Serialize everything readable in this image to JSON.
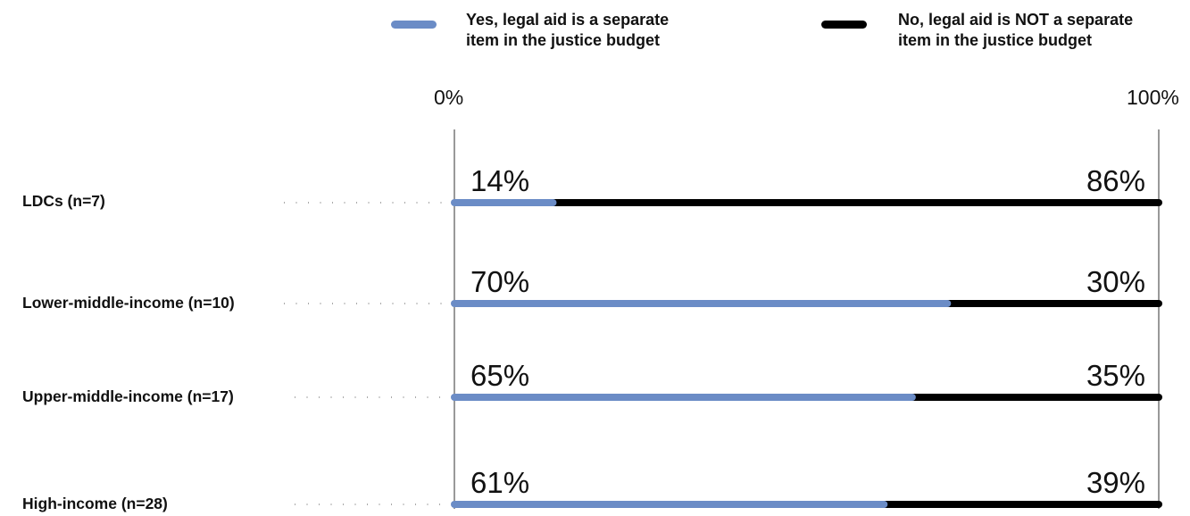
{
  "chart_data": {
    "type": "bar",
    "orientation": "horizontal",
    "stacked": true,
    "categories": [
      "LDCs (n=7)",
      "Lower-middle-income (n=10)",
      "Upper-middle-income (n=17)",
      "High-income (n=28)"
    ],
    "series": [
      {
        "name": "Yes, legal aid is a separate item in the justice budget",
        "color": "#6b8cc6",
        "values": [
          14,
          70,
          65,
          61
        ],
        "labels": [
          "14%",
          "70%",
          "65%",
          "61%"
        ]
      },
      {
        "name": "No, legal aid is NOT a separate item in the justice budget",
        "color": "#000000",
        "values": [
          86,
          30,
          35,
          39
        ],
        "labels": [
          "86%",
          "30%",
          "35%",
          "39%"
        ]
      }
    ],
    "xlim": [
      0,
      100
    ],
    "x_tick_labels": [
      "0%",
      "100%"
    ],
    "legend_position": "top",
    "grid": false
  },
  "legend": {
    "yes_label": "Yes, legal aid is a separate\nitem in the justice budget",
    "no_label": "No, legal aid is NOT a separate\nitem in the justice budget"
  },
  "axis": {
    "min_label": "0%",
    "max_label": "100%"
  }
}
